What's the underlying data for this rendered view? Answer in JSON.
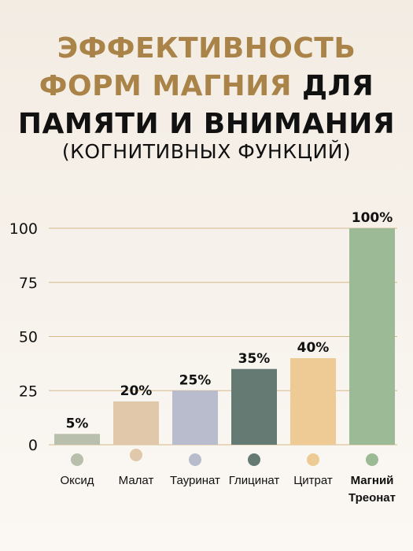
{
  "title": {
    "line1": "ЭФФЕКТИВНОСТЬ",
    "line2_accent": "ФОРМ МАГНИЯ",
    "line2_dark": "ДЛЯ",
    "line3": "ПАМЯТИ И ВНИМАНИЯ"
  },
  "subtitle": "(КОГНИТИВНЫХ ФУНКЦИЙ)",
  "chart_data": {
    "type": "bar",
    "title": "ЭФФЕКТИВНОСТЬ ФОРМ МАГНИЯ ДЛЯ ПАМЯТИ И ВНИМАНИЯ",
    "subtitle": "(КОГНИТИВНЫХ ФУНКЦИЙ)",
    "categories": [
      "Оксид",
      "Малат",
      "Тауринат",
      "Глицинат",
      "Цитрат",
      "Магний Треонат"
    ],
    "values": [
      5,
      20,
      25,
      35,
      40,
      100
    ],
    "data_labels": [
      "5%",
      "20%",
      "25%",
      "35%",
      "40%",
      "100%"
    ],
    "colors": [
      "#b9bfad",
      "#e2c8ab",
      "#b8bccd",
      "#657a73",
      "#eecb94",
      "#9dba97"
    ],
    "highlight_index": 5,
    "yticks": [
      0,
      25,
      50,
      75,
      100
    ],
    "ylim": [
      0,
      100
    ],
    "grid": true,
    "gridline_color": "#d4b98a",
    "xlabel": "",
    "ylabel": ""
  }
}
